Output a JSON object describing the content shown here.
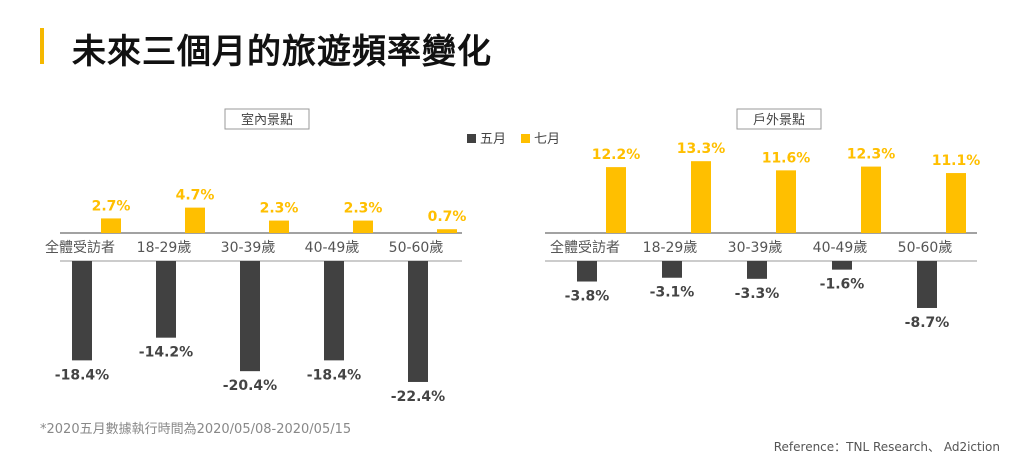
{
  "title": "未來三個月的旅遊頻率變化",
  "colors": {
    "may": "#414141",
    "july": "#ffbf00",
    "accent": "#f5b800"
  },
  "chart_data": [
    {
      "type": "bar",
      "group_label": "室內景點",
      "categories": [
        "全體受訪者",
        "18-29歲",
        "30-39歲",
        "40-49歲",
        "50-60歲"
      ],
      "series": [
        {
          "name": "五月",
          "values": [
            -18.4,
            -14.2,
            -20.4,
            -18.4,
            -22.4
          ],
          "labels": [
            "-18.4%",
            "-14.2%",
            "-20.4%",
            "-18.4%",
            "-22.4%"
          ]
        },
        {
          "name": "七月",
          "values": [
            2.7,
            4.7,
            2.3,
            2.3,
            0.7
          ],
          "labels": [
            "2.7%",
            "4.7%",
            "2.3%",
            "2.3%",
            "0.7%"
          ]
        }
      ],
      "unit": "%"
    },
    {
      "type": "bar",
      "group_label": "戶外景點",
      "categories": [
        "全體受訪者",
        "18-29歲",
        "30-39歲",
        "40-49歲",
        "50-60歲"
      ],
      "series": [
        {
          "name": "五月",
          "values": [
            -3.8,
            -3.1,
            -3.3,
            -1.6,
            -8.7
          ],
          "labels": [
            "-3.8%",
            "-3.1%",
            "-3.3%",
            "-1.6%",
            "-8.7%"
          ]
        },
        {
          "name": "七月",
          "values": [
            12.2,
            13.3,
            11.6,
            12.3,
            11.1
          ],
          "labels": [
            "12.2%",
            "13.3%",
            "11.6%",
            "12.3%",
            "11.1%"
          ]
        }
      ],
      "unit": "%"
    }
  ],
  "legend": [
    {
      "name": "五月",
      "color": "#414141"
    },
    {
      "name": "七月",
      "color": "#ffbf00"
    }
  ],
  "footnote": "*2020五月數據執行時間為2020/05/08-2020/05/15",
  "reference": "Reference：TNL Research、 Ad2iction"
}
